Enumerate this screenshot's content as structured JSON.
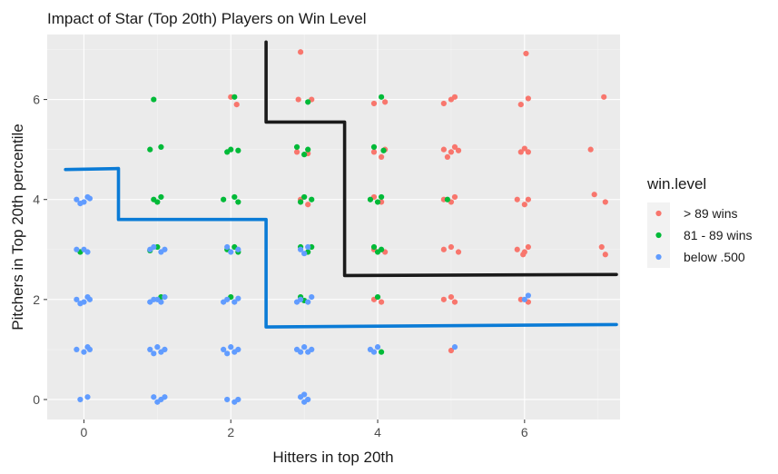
{
  "chart_data": {
    "type": "scatter",
    "title": "Impact of Star (Top 20th) Players on Win Level",
    "xlabel": "Hitters in top 20th",
    "ylabel": "Pitchers in Top 20th percentile",
    "xlim": [
      -0.5,
      7.3
    ],
    "ylim": [
      -0.4,
      7.3
    ],
    "x_ticks": [
      0,
      2,
      4,
      6
    ],
    "y_ticks": [
      0,
      2,
      4,
      6
    ],
    "grid": true,
    "legend_title": "win.level",
    "legend_position": "right",
    "series": [
      {
        "name": "> 89 wins",
        "color": "#F8766D",
        "points": [
          [
            2.95,
            6.95
          ],
          [
            6.02,
            6.92
          ],
          [
            2.0,
            6.05
          ],
          [
            2.08,
            5.9
          ],
          [
            2.92,
            6.0
          ],
          [
            3.1,
            6.0
          ],
          [
            3.95,
            5.92
          ],
          [
            4.1,
            5.95
          ],
          [
            4.9,
            5.92
          ],
          [
            5.0,
            6.0
          ],
          [
            5.05,
            6.05
          ],
          [
            5.95,
            5.9
          ],
          [
            6.05,
            6.02
          ],
          [
            7.08,
            6.05
          ],
          [
            2.9,
            4.95
          ],
          [
            3.05,
            4.92
          ],
          [
            3.95,
            4.95
          ],
          [
            4.05,
            4.85
          ],
          [
            4.1,
            5.0
          ],
          [
            4.9,
            5.0
          ],
          [
            5.0,
            4.95
          ],
          [
            5.05,
            5.05
          ],
          [
            4.95,
            4.85
          ],
          [
            5.1,
            4.98
          ],
          [
            5.95,
            4.95
          ],
          [
            6.05,
            4.95
          ],
          [
            6.0,
            5.02
          ],
          [
            6.9,
            5.0
          ],
          [
            2.95,
            4.0
          ],
          [
            3.05,
            3.9
          ],
          [
            3.95,
            4.05
          ],
          [
            4.05,
            3.95
          ],
          [
            4.9,
            4.0
          ],
          [
            5.05,
            4.05
          ],
          [
            5.0,
            3.95
          ],
          [
            5.9,
            4.0
          ],
          [
            6.05,
            4.0
          ],
          [
            6.0,
            3.9
          ],
          [
            6.95,
            4.1
          ],
          [
            7.1,
            3.95
          ],
          [
            3.95,
            3.0
          ],
          [
            4.1,
            2.95
          ],
          [
            4.9,
            3.0
          ],
          [
            5.0,
            3.05
          ],
          [
            5.1,
            2.95
          ],
          [
            5.9,
            3.0
          ],
          [
            6.0,
            2.95
          ],
          [
            6.05,
            3.05
          ],
          [
            5.98,
            2.9
          ],
          [
            7.05,
            3.05
          ],
          [
            7.1,
            2.9
          ],
          [
            3.95,
            2.0
          ],
          [
            4.05,
            1.95
          ],
          [
            4.9,
            2.0
          ],
          [
            5.0,
            2.05
          ],
          [
            5.05,
            1.95
          ],
          [
            5.95,
            2.0
          ],
          [
            6.05,
            1.95
          ],
          [
            5.0,
            0.98
          ]
        ]
      },
      {
        "name": "81 - 89 wins",
        "color": "#00BA38",
        "points": [
          [
            0.95,
            6.0
          ],
          [
            2.05,
            6.05
          ],
          [
            4.05,
            6.05
          ],
          [
            3.05,
            5.95
          ],
          [
            0.9,
            5.0
          ],
          [
            1.05,
            5.05
          ],
          [
            2.0,
            5.0
          ],
          [
            2.1,
            4.98
          ],
          [
            1.95,
            4.95
          ],
          [
            2.9,
            5.05
          ],
          [
            3.05,
            5.0
          ],
          [
            3.0,
            4.9
          ],
          [
            3.95,
            5.05
          ],
          [
            4.08,
            4.98
          ],
          [
            0.95,
            4.0
          ],
          [
            1.05,
            4.05
          ],
          [
            1.0,
            3.95
          ],
          [
            1.9,
            4.0
          ],
          [
            2.05,
            4.05
          ],
          [
            2.1,
            3.95
          ],
          [
            2.95,
            3.95
          ],
          [
            3.1,
            4.0
          ],
          [
            3.0,
            4.05
          ],
          [
            3.9,
            4.0
          ],
          [
            4.05,
            4.05
          ],
          [
            4.0,
            3.95
          ],
          [
            4.95,
            4.0
          ],
          [
            -0.05,
            2.95
          ],
          [
            1.0,
            3.05
          ],
          [
            0.9,
            2.98
          ],
          [
            1.95,
            3.0
          ],
          [
            2.05,
            3.05
          ],
          [
            2.1,
            2.95
          ],
          [
            2.95,
            3.05
          ],
          [
            3.05,
            2.95
          ],
          [
            3.1,
            3.05
          ],
          [
            3.95,
            3.05
          ],
          [
            4.05,
            3.0
          ],
          [
            4.0,
            2.95
          ],
          [
            1.05,
            2.05
          ],
          [
            2.0,
            2.05
          ],
          [
            2.95,
            2.05
          ],
          [
            3.0,
            1.98
          ],
          [
            4.0,
            2.05
          ],
          [
            4.05,
            0.95
          ]
        ]
      },
      {
        "name": "below .500",
        "color": "#619CFF",
        "points": [
          [
            -0.1,
            4.0
          ],
          [
            0.05,
            4.05
          ],
          [
            0.0,
            3.95
          ],
          [
            0.08,
            4.02
          ],
          [
            -0.05,
            3.92
          ],
          [
            -0.1,
            3.0
          ],
          [
            0.05,
            2.95
          ],
          [
            0.0,
            3.0
          ],
          [
            0.95,
            3.05
          ],
          [
            1.05,
            2.95
          ],
          [
            1.1,
            3.0
          ],
          [
            0.9,
            3.0
          ],
          [
            1.95,
            3.05
          ],
          [
            2.0,
            2.95
          ],
          [
            2.1,
            3.0
          ],
          [
            2.95,
            3.0
          ],
          [
            3.05,
            3.05
          ],
          [
            3.0,
            2.92
          ],
          [
            -0.1,
            2.0
          ],
          [
            0.05,
            2.05
          ],
          [
            0.0,
            1.95
          ],
          [
            0.08,
            2.0
          ],
          [
            -0.05,
            1.92
          ],
          [
            0.95,
            2.0
          ],
          [
            1.05,
            1.95
          ],
          [
            1.1,
            2.05
          ],
          [
            0.9,
            1.95
          ],
          [
            1.0,
            2.0
          ],
          [
            1.95,
            2.0
          ],
          [
            2.05,
            1.95
          ],
          [
            2.1,
            2.02
          ],
          [
            1.9,
            1.95
          ],
          [
            2.95,
            2.0
          ],
          [
            3.05,
            1.95
          ],
          [
            3.1,
            2.05
          ],
          [
            2.9,
            1.95
          ],
          [
            6.0,
            2.0
          ],
          [
            6.05,
            2.08
          ],
          [
            -0.1,
            1.0
          ],
          [
            0.05,
            1.05
          ],
          [
            0.0,
            0.95
          ],
          [
            0.08,
            1.0
          ],
          [
            0.9,
            1.0
          ],
          [
            1.0,
            1.05
          ],
          [
            1.05,
            0.95
          ],
          [
            1.1,
            1.0
          ],
          [
            0.95,
            0.92
          ],
          [
            1.9,
            1.0
          ],
          [
            2.0,
            1.05
          ],
          [
            2.05,
            0.95
          ],
          [
            2.1,
            1.0
          ],
          [
            1.95,
            0.92
          ],
          [
            2.9,
            1.0
          ],
          [
            3.0,
            1.05
          ],
          [
            3.05,
            0.95
          ],
          [
            3.1,
            1.0
          ],
          [
            2.95,
            0.95
          ],
          [
            3.9,
            1.0
          ],
          [
            4.0,
            1.05
          ],
          [
            3.95,
            0.95
          ],
          [
            5.05,
            1.05
          ],
          [
            -0.05,
            0.0
          ],
          [
            0.05,
            0.05
          ],
          [
            0.95,
            0.05
          ],
          [
            1.0,
            -0.05
          ],
          [
            1.05,
            0.0
          ],
          [
            1.1,
            0.05
          ],
          [
            1.95,
            0.0
          ],
          [
            2.05,
            -0.05
          ],
          [
            2.1,
            0.0
          ],
          [
            2.95,
            0.05
          ],
          [
            3.0,
            -0.05
          ],
          [
            3.05,
            0.0
          ],
          [
            3.0,
            0.1
          ]
        ]
      }
    ],
    "boundary_lines": [
      {
        "color": "#1a1a1a",
        "points": [
          [
            2.48,
            7.15
          ],
          [
            2.48,
            5.55
          ],
          [
            3.55,
            5.55
          ],
          [
            3.55,
            2.48
          ],
          [
            7.25,
            2.5
          ]
        ]
      },
      {
        "color": "#0a7bd6",
        "points": [
          [
            -0.25,
            4.6
          ],
          [
            0.47,
            4.62
          ],
          [
            0.47,
            3.6
          ],
          [
            2.48,
            3.6
          ],
          [
            2.48,
            1.45
          ],
          [
            7.25,
            1.5
          ]
        ]
      }
    ]
  }
}
